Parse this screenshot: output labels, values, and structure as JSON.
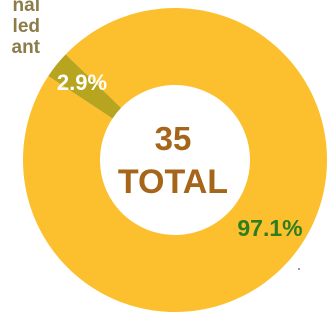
{
  "chart_data": {
    "type": "pie",
    "style": "donut",
    "center": {
      "value": "35",
      "label": "TOTAL"
    },
    "legend_fragment": [
      "nal",
      "led",
      "ant"
    ],
    "slices": [
      {
        "value": 97.1,
        "label": "97.1%",
        "color": "#fcc02e",
        "label_color": "#2e7d1e"
      },
      {
        "value": 2.9,
        "label": "2.9%",
        "color": "#b7a41f",
        "label_color": "#ffffff"
      }
    ],
    "colors": {
      "center_text": "#a5661a",
      "legend_text": "#8c7c4a",
      "background": "#ffffff"
    }
  }
}
